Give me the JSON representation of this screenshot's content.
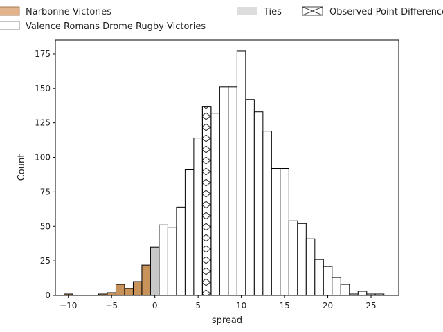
{
  "chart_data": {
    "type": "bar",
    "title": "",
    "xlabel": "spread",
    "ylabel": "Count",
    "xlim": [
      -11.5,
      28.2
    ],
    "ylim": [
      0,
      185
    ],
    "xticks": [
      -10,
      -5,
      0,
      5,
      10,
      15,
      20,
      25
    ],
    "yticks": [
      0,
      25,
      50,
      75,
      100,
      125,
      150,
      175
    ],
    "bin_width": 1,
    "grid": false,
    "legend_placement": "top",
    "legend": [
      {
        "label": "Narbonne Victories",
        "swatch": "narbonne"
      },
      {
        "label": "Valence Romans Drome Rugby Victories",
        "swatch": "valence"
      },
      {
        "label": "Ties",
        "swatch": "ties"
      },
      {
        "label": "Observed Point Difference",
        "swatch": "observed"
      }
    ],
    "series": [
      {
        "name": "Narbonne Victories",
        "color": "#c8935a",
        "bins": [
          {
            "x": -10,
            "count": 1
          },
          {
            "x": -6,
            "count": 1
          },
          {
            "x": -5,
            "count": 2
          },
          {
            "x": -4,
            "count": 8
          },
          {
            "x": -3,
            "count": 5
          },
          {
            "x": -2,
            "count": 10
          },
          {
            "x": -1,
            "count": 22
          }
        ]
      },
      {
        "name": "Ties",
        "color": "#c8c8c8",
        "bins": [
          {
            "x": 0,
            "count": 35
          }
        ]
      },
      {
        "name": "Valence Romans Drome Rugby Victories",
        "color": "#ffffff",
        "bins": [
          {
            "x": 1,
            "count": 51
          },
          {
            "x": 2,
            "count": 49
          },
          {
            "x": 3,
            "count": 64
          },
          {
            "x": 4,
            "count": 91
          },
          {
            "x": 5,
            "count": 114
          },
          {
            "x": 7,
            "count": 132
          },
          {
            "x": 8,
            "count": 151
          },
          {
            "x": 9,
            "count": 151
          },
          {
            "x": 10,
            "count": 177
          },
          {
            "x": 11,
            "count": 142
          },
          {
            "x": 12,
            "count": 133
          },
          {
            "x": 13,
            "count": 119
          },
          {
            "x": 14,
            "count": 92
          },
          {
            "x": 15,
            "count": 92
          },
          {
            "x": 16,
            "count": 54
          },
          {
            "x": 17,
            "count": 52
          },
          {
            "x": 18,
            "count": 41
          },
          {
            "x": 19,
            "count": 26
          },
          {
            "x": 20,
            "count": 21
          },
          {
            "x": 21,
            "count": 13
          },
          {
            "x": 22,
            "count": 8
          },
          {
            "x": 23,
            "count": 1
          },
          {
            "x": 24,
            "count": 3
          },
          {
            "x": 25,
            "count": 1
          },
          {
            "x": 26,
            "count": 1
          }
        ]
      },
      {
        "name": "Observed Point Difference",
        "color": "#ffffff",
        "hatch": "x",
        "bins": [
          {
            "x": 6,
            "count": 137
          }
        ]
      }
    ]
  }
}
